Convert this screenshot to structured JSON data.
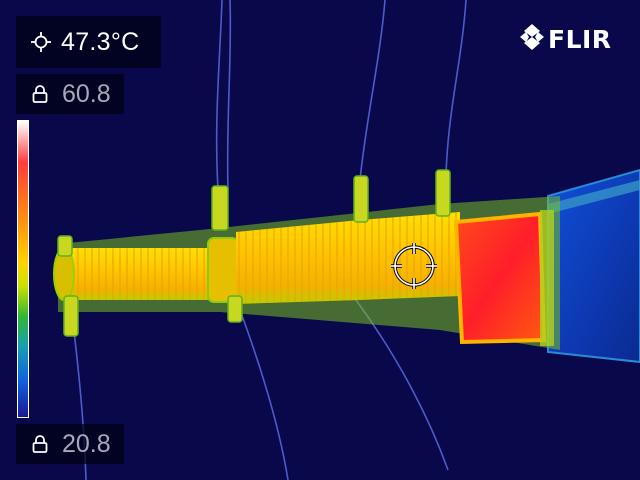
{
  "brand": {
    "logo_text": "FLIR"
  },
  "spot_meter": {
    "value": "47.3°C",
    "icon": "crosshair-icon"
  },
  "scale": {
    "max_label": "60.8",
    "min_label": "20.8",
    "lock_icon": "lock-icon"
  },
  "colors": {
    "background": "#08084a",
    "hot": "#ff2a2a",
    "warm": "#ffcc00",
    "cool": "#1a50e0"
  }
}
